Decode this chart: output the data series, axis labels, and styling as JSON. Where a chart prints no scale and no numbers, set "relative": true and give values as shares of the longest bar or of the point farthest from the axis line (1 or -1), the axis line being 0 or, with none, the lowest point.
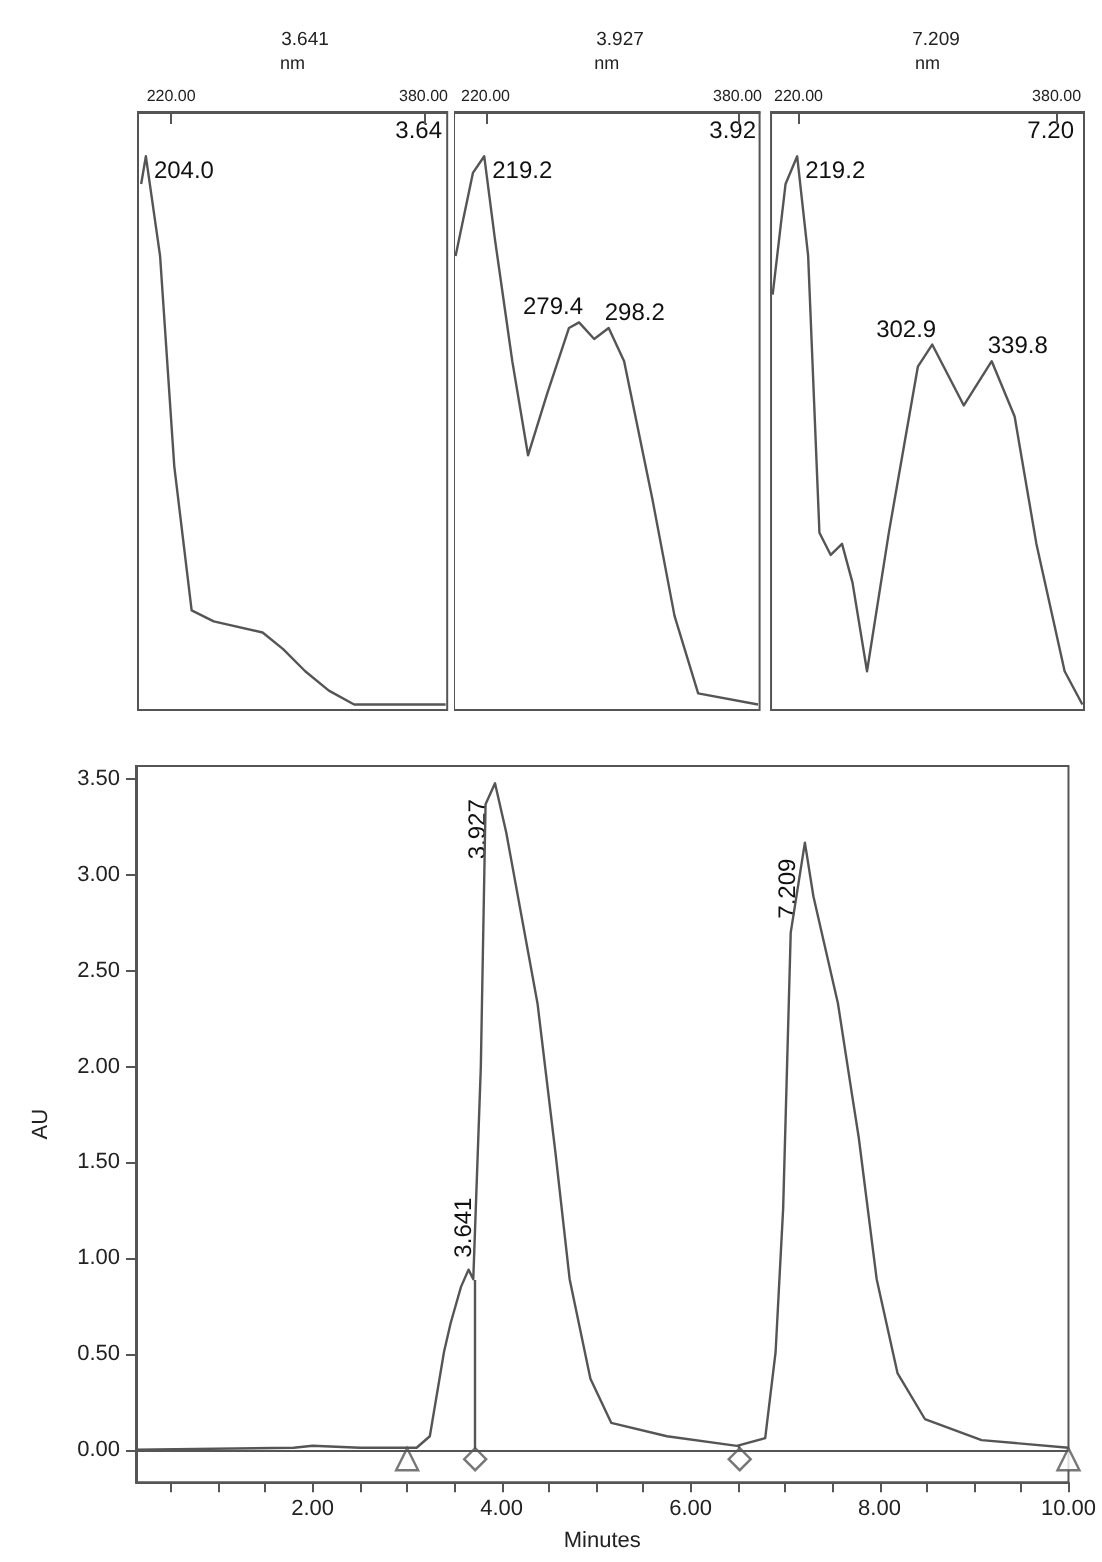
{
  "chart_data": [
    {
      "type": "line",
      "title": "3.641",
      "xlabel": "nm",
      "relative": true,
      "tick_labels": "x",
      "marker": "none",
      "xlim": [
        199,
        395
      ],
      "xticks": [
        {
          "value": 220,
          "label": "220.00"
        },
        {
          "value": 380,
          "label": "380.00"
        }
      ],
      "series": [
        {
          "color": "#555555",
          "x": [
            201,
            204,
            213,
            222,
            233,
            247,
            278,
            291,
            305,
            320,
            336,
            394
          ],
          "values": [
            0.95,
            1,
            0.82,
            0.44,
            0.18,
            0.16,
            0.14,
            0.11,
            0.07,
            0.035,
            0.01,
            0.01
          ]
        }
      ],
      "annotations": [
        {
          "text": "204.0",
          "x": 204,
          "y": 1
        },
        "3.64"
      ]
    },
    {
      "type": "line",
      "title": "3.927",
      "xlabel": "nm",
      "relative": true,
      "tick_labels": "x",
      "marker": "none",
      "xlim": [
        200,
        394
      ],
      "xticks": [
        {
          "value": 220,
          "label": "220.00"
        },
        {
          "value": 380,
          "label": "380.00"
        }
      ],
      "series": [
        {
          "color": "#555555",
          "x": [
            201,
            212,
            219.2,
            226,
            237,
            247,
            259,
            273,
            279.4,
            289,
            298.2,
            308,
            326,
            340,
            355,
            393
          ],
          "values": [
            0.82,
            0.97,
            1,
            0.85,
            0.63,
            0.46,
            0.57,
            0.69,
            0.7,
            0.67,
            0.69,
            0.63,
            0.38,
            0.17,
            0.03,
            0.01
          ]
        }
      ],
      "annotations": [
        {
          "text": "219.2",
          "x": 219.2,
          "y": 1
        },
        {
          "text": "279.4",
          "x": 279.4,
          "y": 0.7
        },
        {
          "text": "298.2",
          "x": 298.2,
          "y": 0.69
        },
        "3.92"
      ]
    },
    {
      "type": "line",
      "title": "7.209",
      "xlabel": "nm",
      "relative": true,
      "tick_labels": "x",
      "marker": "none",
      "xlim": [
        203,
        397
      ],
      "xticks": [
        {
          "value": 220,
          "label": "220.00"
        },
        {
          "value": 380,
          "label": "380.00"
        }
      ],
      "series": [
        {
          "color": "#555555",
          "x": [
            204,
            212,
            219.2,
            226,
            233,
            240,
            247,
            253.5,
            262.5,
            276,
            294,
            302.9,
            322.5,
            339.8,
            354,
            367.5,
            385,
            396
          ],
          "values": [
            0.75,
            0.95,
            1,
            0.82,
            0.32,
            0.28,
            0.3,
            0.23,
            0.07,
            0.32,
            0.62,
            0.66,
            0.55,
            0.63,
            0.53,
            0.3,
            0.07,
            0.01
          ]
        }
      ],
      "annotations": [
        {
          "text": "219.2",
          "x": 219.2,
          "y": 1
        },
        {
          "text": "302.9",
          "x": 302.9,
          "y": 0.66
        },
        {
          "text": "339.8",
          "x": 339.8,
          "y": 0.63
        },
        "7.20"
      ]
    },
    {
      "type": "line",
      "xlabel": "Minutes",
      "ylabel": "AU",
      "marker": "none",
      "xlim": [
        0.13,
        10
      ],
      "ylim": [
        -0.17,
        3.57
      ],
      "xticks": [
        {
          "value": 0.5,
          "label": null
        },
        {
          "value": 1,
          "label": null
        },
        {
          "value": 1.5,
          "label": null
        },
        {
          "value": 2,
          "label": "2.00"
        },
        {
          "value": 2.5,
          "label": null
        },
        {
          "value": 3,
          "label": null
        },
        {
          "value": 3.5,
          "label": null
        },
        {
          "value": 4,
          "label": "4.00"
        },
        {
          "value": 4.5,
          "label": null
        },
        {
          "value": 5,
          "label": null
        },
        {
          "value": 5.5,
          "label": null
        },
        {
          "value": 6,
          "label": "6.00"
        },
        {
          "value": 6.5,
          "label": null
        },
        {
          "value": 7,
          "label": null
        },
        {
          "value": 7.5,
          "label": null
        },
        {
          "value": 8,
          "label": "8.00"
        },
        {
          "value": 8.5,
          "label": null
        },
        {
          "value": 9,
          "label": null
        },
        {
          "value": 9.5,
          "label": null
        },
        {
          "value": 10,
          "label": "10.00"
        }
      ],
      "yticks": [
        {
          "value": 0,
          "label": "0.00"
        },
        {
          "value": 0.5,
          "label": "0.50"
        },
        {
          "value": 1,
          "label": "1.00"
        },
        {
          "value": 1.5,
          "label": "1.50"
        },
        {
          "value": 2,
          "label": "2.00"
        },
        {
          "value": 2.5,
          "label": "2.50"
        },
        {
          "value": 3,
          "label": "3.00"
        },
        {
          "value": 3.5,
          "label": "3.50"
        }
      ],
      "ref_lines": [
        {
          "axis": "y",
          "value": 0,
          "color": "#555555"
        }
      ],
      "series": [
        {
          "color": "#555555",
          "x": [
            0.13,
            1.8,
            2.0,
            2.5,
            3.1,
            3.24,
            3.39,
            3.46,
            3.57,
            3.65,
            3.7,
            3.78,
            3.83,
            3.93,
            4.05,
            4.38,
            4.57,
            4.72,
            4.94,
            5.16,
            5.75,
            6.49,
            6.79,
            6.9,
            6.98,
            7.06,
            7.21,
            7.3,
            7.56,
            7.71,
            7.78,
            7.97,
            8.19,
            8.48,
            9.08,
            10
          ],
          "values": [
            0,
            0.01,
            0.02,
            0.01,
            0.01,
            0.07,
            0.51,
            0.66,
            0.85,
            0.94,
            0.89,
            2.0,
            3.37,
            3.48,
            3.22,
            2.33,
            1.55,
            0.89,
            0.37,
            0.14,
            0.07,
            0.02,
            0.06,
            0.51,
            1.26,
            2.7,
            3.17,
            2.89,
            2.33,
            1.85,
            1.63,
            0.89,
            0.4,
            0.16,
            0.05,
            0.01
          ]
        },
        {
          "type": "scatter",
          "marker": "triangle",
          "color": "#555555",
          "x": [
            3.0,
            10.0
          ],
          "values": [
            -0.05,
            -0.05
          ]
        },
        {
          "type": "scatter",
          "marker": "diamond",
          "color": "#555555",
          "x": [
            3.72,
            6.52
          ],
          "values": [
            -0.05,
            -0.05
          ]
        }
      ],
      "annotations": [
        {
          "text": "3.641",
          "x": 3.65,
          "y": 0.94
        },
        {
          "text": "3.927",
          "x": 3.93,
          "y": 3.48
        },
        {
          "text": "7.209",
          "x": 7.21,
          "y": 3.17
        }
      ]
    }
  ]
}
